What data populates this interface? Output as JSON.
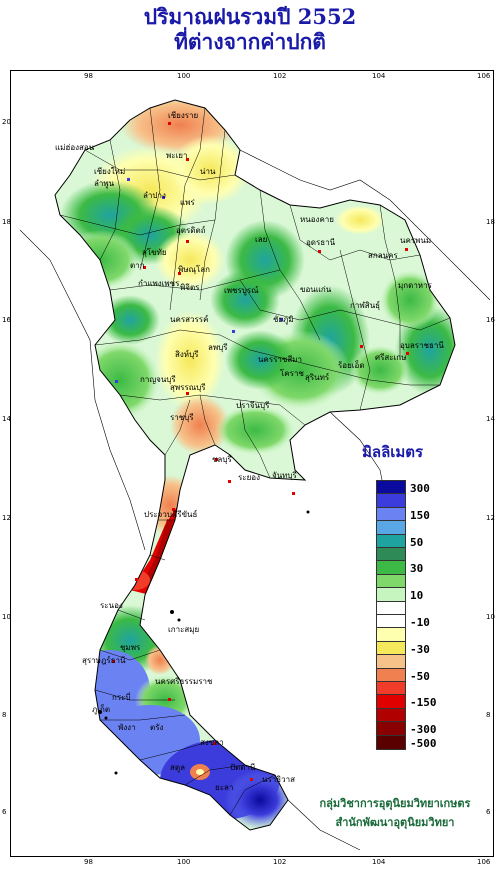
{
  "title": {
    "line1": "ปริมาณฝนรวมปี  2552",
    "line2": "ที่ต่างจากค่าปกติ"
  },
  "axes": {
    "lon_ticks": [
      "98",
      "100",
      "102",
      "104",
      "106"
    ],
    "lat_ticks": [
      "20",
      "18",
      "16",
      "14",
      "12",
      "10",
      "8",
      "6"
    ]
  },
  "legend": {
    "title": "มิลลิเมตร",
    "classes": [
      {
        "label": "300",
        "color": "#0a0a9e"
      },
      {
        "label": "",
        "color": "#3c3cdc"
      },
      {
        "label": "150",
        "color": "#6b82f2"
      },
      {
        "label": "",
        "color": "#5aa7e6"
      },
      {
        "label": "50",
        "color": "#1fa3a0"
      },
      {
        "label": "",
        "color": "#2e8b57"
      },
      {
        "label": "30",
        "color": "#3cba45"
      },
      {
        "label": "",
        "color": "#7fd86a"
      },
      {
        "label": "10",
        "color": "#c7f5c0"
      },
      {
        "label": "",
        "color": "#ffffff"
      },
      {
        "label": "-10",
        "color": "#ffffff"
      },
      {
        "label": "",
        "color": "#ffffb0"
      },
      {
        "label": "-30",
        "color": "#f5e85a"
      },
      {
        "label": "",
        "color": "#f7c28a"
      },
      {
        "label": "-50",
        "color": "#f08050"
      },
      {
        "label": "",
        "color": "#f03c28"
      },
      {
        "label": "-150",
        "color": "#e00000"
      },
      {
        "label": "",
        "color": "#b00000"
      },
      {
        "label": "-300",
        "color": "#880000"
      },
      {
        "label": "-500",
        "color": "#5a0000"
      }
    ]
  },
  "provinces": [
    "เชียงราย",
    "แม่ฮ่องสอน",
    "เชียงใหม่",
    "ลำพูน",
    "พะเยา",
    "น่าน",
    "ลำปาง",
    "แพร่",
    "อุตรดิตถ์",
    "ตาก",
    "สุโขทัย",
    "พิษณุโลก",
    "กำแพงเพชร",
    "พิจิตร",
    "เพชรบูรณ์",
    "นครสวรรค์",
    "เลย",
    "หนองคาย",
    "อุดรธานี",
    "นครพนม",
    "สกลนคร",
    "มุกดาหาร",
    "ขอนแก่น",
    "กาฬสินธุ์",
    "ชัยภูมิ",
    "นครราชสีมา",
    "โคราช",
    "สุรินทร์",
    "ร้อยเอ็ด",
    "อุบลราชธานี",
    "ศรีสะเกษ",
    "ลพบุรี",
    "สิงห์บุรี",
    "สุพรรณบุรี",
    "กาญจนบุรี",
    "ราชบุรี",
    "ปราจีนบุรี",
    "ชลบุรี",
    "ระยอง",
    "จันทบุรี",
    "ประจวบคีรีขันธ์",
    "ระนอง",
    "ชุมพร",
    "สุราษฎร์ธานี",
    "นครศรีธรรมราช",
    "กระบี่",
    "ภูเก็ต",
    "พังงา",
    "ตรัง",
    "สงขลา",
    "ปัตตานี",
    "นราธิวาส",
    "ยะลา",
    "สตูล",
    "เกาะสมุย"
  ],
  "credit": {
    "line1": "กลุ่มวิชาการอุตุนิยมวิทยาเกษตร",
    "line2": "สำนักพัฒนาอุตุนิยมวิทยา"
  }
}
